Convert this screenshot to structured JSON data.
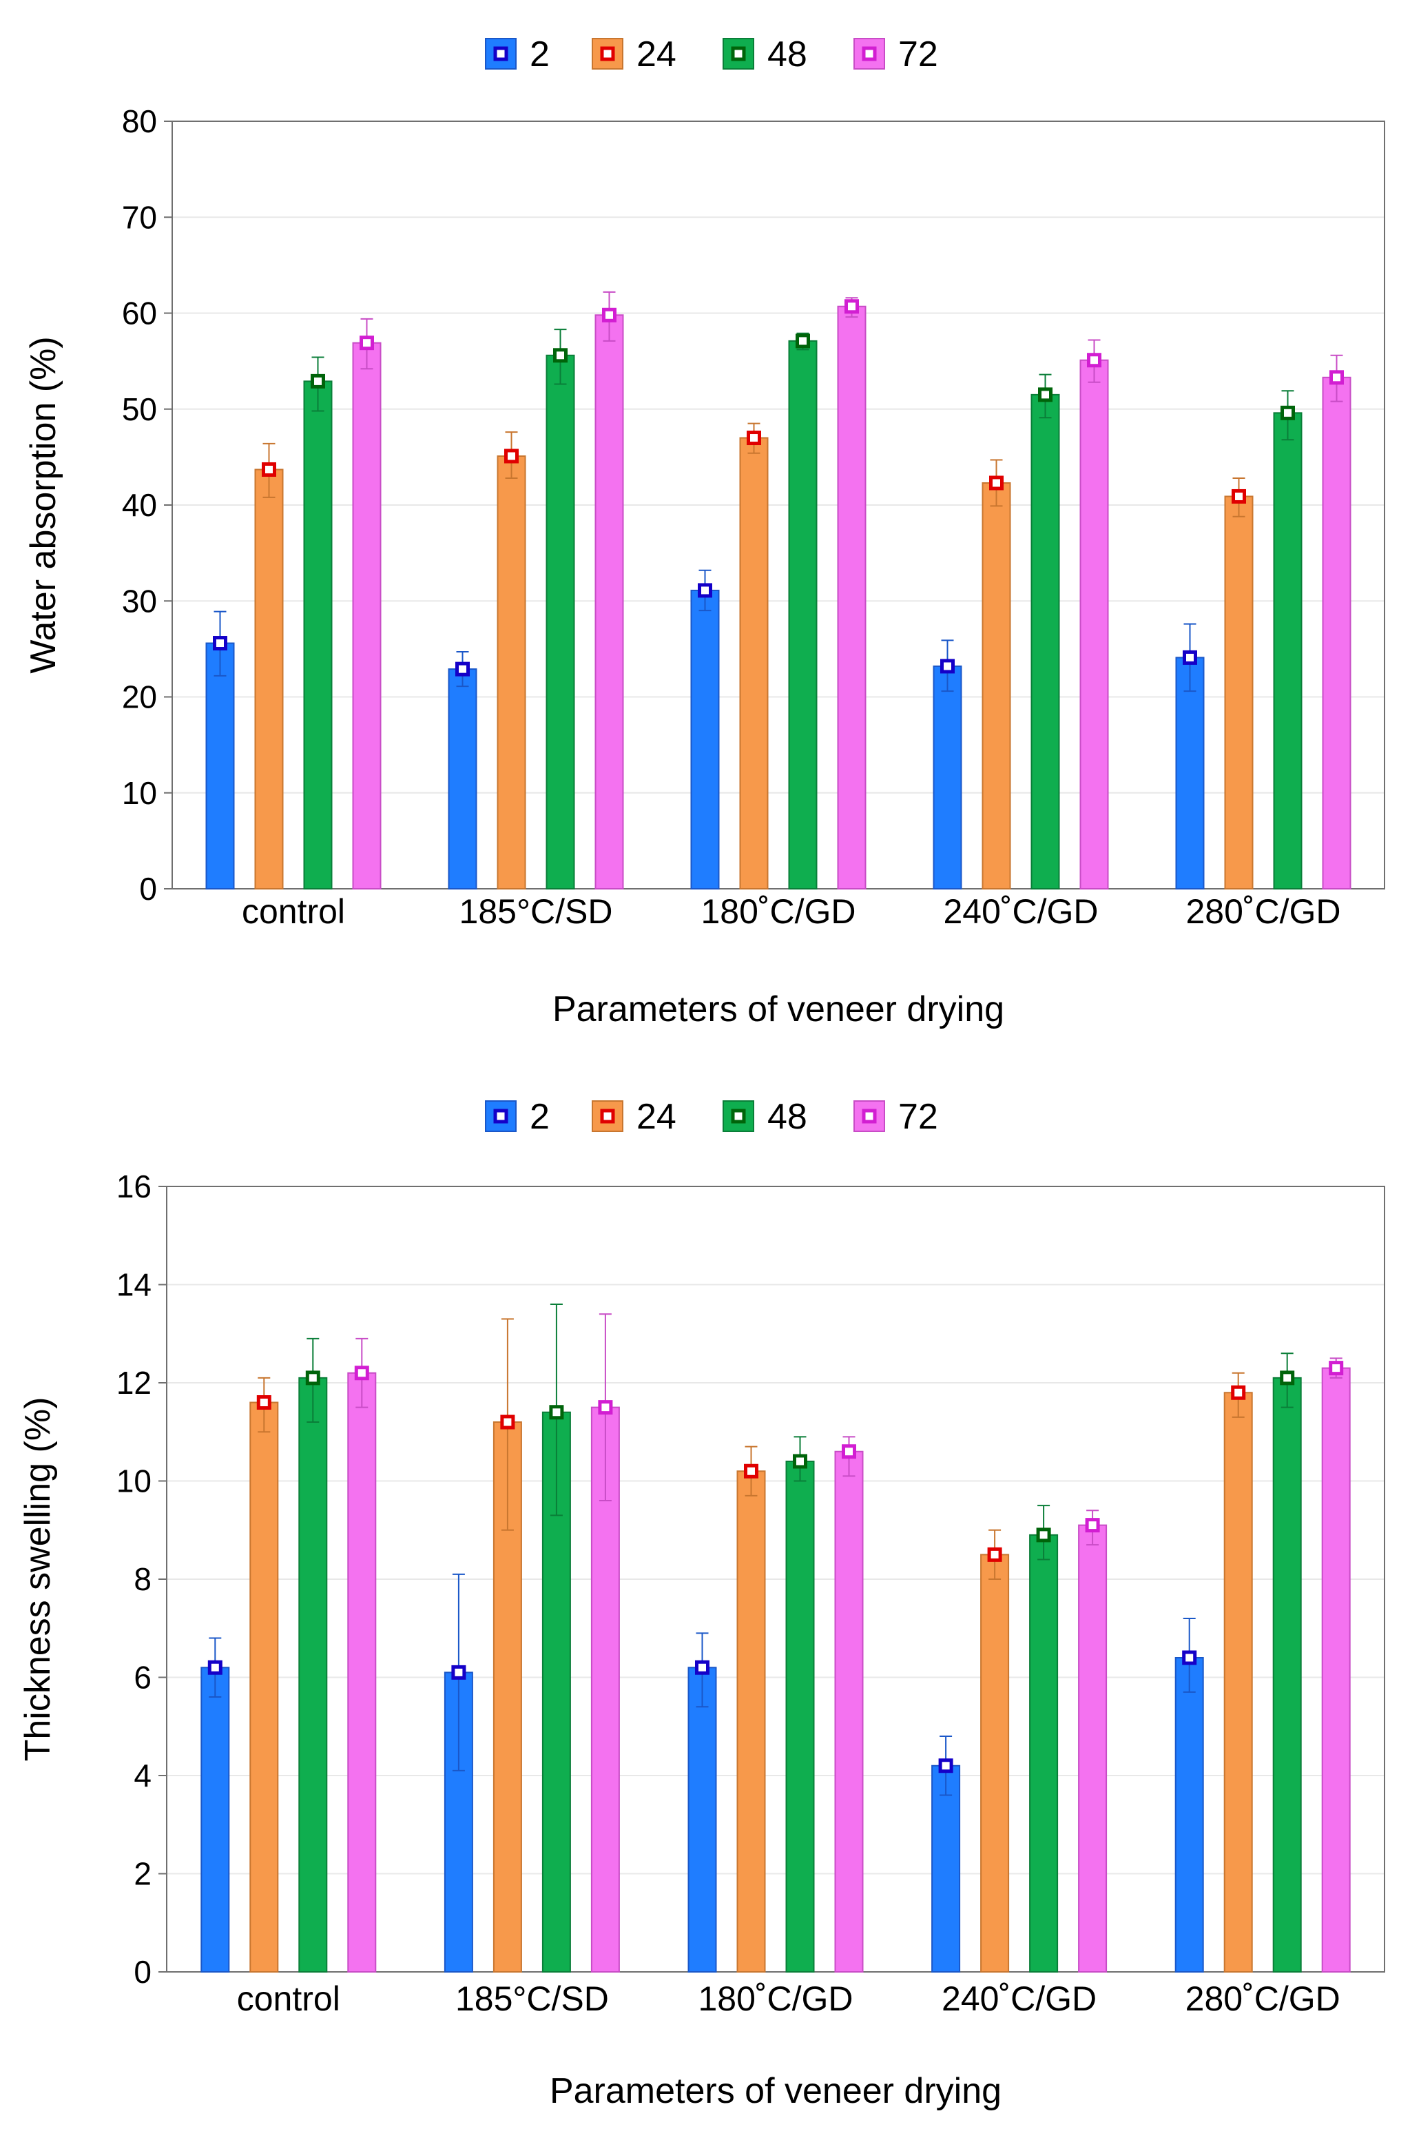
{
  "colors": {
    "series_fill": [
      "#1f7dff",
      "#f7994b",
      "#0fae4f",
      "#f472f0"
    ],
    "series_edge": [
      "#1a57c8",
      "#c8762f",
      "#0a7e38",
      "#c84cc6"
    ],
    "series_marker": [
      "#1400c8",
      "#e00000",
      "#00640a",
      "#d21ed2"
    ],
    "grid": "#e8e8e8",
    "axis": "#6f6f6f"
  },
  "chart_data": [
    {
      "type": "bar",
      "title": "",
      "xlabel": "Parameters of veneer drying",
      "ylabel": "Water absorption (%)",
      "ylim": [
        0,
        80
      ],
      "yticks": [
        "0",
        "10",
        "20",
        "30",
        "40",
        "50",
        "60",
        "70",
        "80"
      ],
      "grid": true,
      "legend": "top-center",
      "categories": [
        "control",
        "185°C/SD",
        "180˚C/GD",
        "240˚C/GD",
        "280˚C/GD"
      ],
      "series": [
        {
          "name": "2",
          "values": [
            25.6,
            22.9,
            31.1,
            23.2,
            24.1
          ],
          "err_low": [
            22.2,
            21.1,
            29.0,
            20.6,
            20.6
          ],
          "err_high": [
            28.9,
            24.7,
            33.2,
            25.9,
            27.6
          ]
        },
        {
          "name": "24",
          "values": [
            43.7,
            45.1,
            47.0,
            42.3,
            40.9
          ],
          "err_low": [
            40.8,
            42.8,
            45.4,
            39.9,
            38.8
          ],
          "err_high": [
            46.4,
            47.6,
            48.5,
            44.7,
            42.8
          ]
        },
        {
          "name": "48",
          "values": [
            52.9,
            55.6,
            57.1,
            51.5,
            49.6
          ],
          "err_low": [
            49.8,
            52.6,
            56.2,
            49.1,
            46.8
          ],
          "err_high": [
            55.4,
            58.3,
            57.9,
            53.6,
            51.9
          ]
        },
        {
          "name": "72",
          "values": [
            56.9,
            59.8,
            60.7,
            55.1,
            53.3
          ],
          "err_low": [
            54.2,
            57.1,
            59.6,
            52.8,
            50.8
          ],
          "err_high": [
            59.4,
            62.2,
            61.6,
            57.2,
            55.6
          ]
        }
      ]
    },
    {
      "type": "bar",
      "title": "",
      "xlabel": "Parameters of veneer drying",
      "ylabel": "Thickness swelling (%)",
      "ylim": [
        0,
        16
      ],
      "yticks": [
        "0",
        "2",
        "4",
        "6",
        "8",
        "10",
        "12",
        "14",
        "16"
      ],
      "grid": true,
      "legend": "top-center",
      "categories": [
        "control",
        "185°C/SD",
        "180˚C/GD",
        "240˚C/GD",
        "280˚C/GD"
      ],
      "series": [
        {
          "name": "2",
          "values": [
            6.2,
            6.1,
            6.2,
            4.2,
            6.4
          ],
          "err_low": [
            5.6,
            4.1,
            5.4,
            3.6,
            5.7
          ],
          "err_high": [
            6.8,
            8.1,
            6.9,
            4.8,
            7.2
          ]
        },
        {
          "name": "24",
          "values": [
            11.6,
            11.2,
            10.2,
            8.5,
            11.8
          ],
          "err_low": [
            11.0,
            9.0,
            9.7,
            8.0,
            11.3
          ],
          "err_high": [
            12.1,
            13.3,
            10.7,
            9.0,
            12.2
          ]
        },
        {
          "name": "48",
          "values": [
            12.1,
            11.4,
            10.4,
            8.9,
            12.1
          ],
          "err_low": [
            11.2,
            9.3,
            10.0,
            8.4,
            11.5
          ],
          "err_high": [
            12.9,
            13.6,
            10.9,
            9.5,
            12.6
          ]
        },
        {
          "name": "72",
          "values": [
            12.2,
            11.5,
            10.6,
            9.1,
            12.3
          ],
          "err_low": [
            11.5,
            9.6,
            10.1,
            8.7,
            12.1
          ],
          "err_high": [
            12.9,
            13.4,
            10.9,
            9.4,
            12.5
          ]
        }
      ]
    }
  ]
}
